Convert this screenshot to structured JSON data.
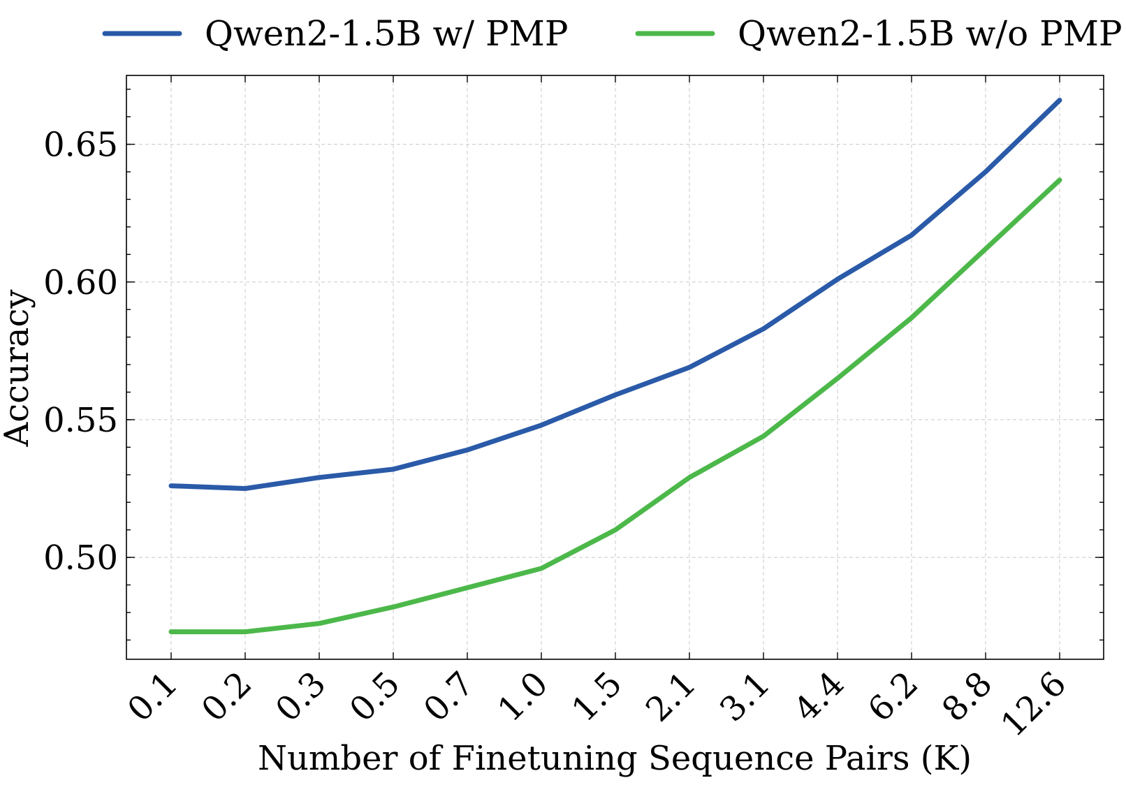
{
  "chart_data": {
    "type": "line",
    "xlabel": "Number of Finetuning Sequence Pairs (K)",
    "ylabel": "Accuracy",
    "categories": [
      "0.1",
      "0.2",
      "0.3",
      "0.5",
      "0.7",
      "1.0",
      "1.5",
      "2.1",
      "3.1",
      "4.4",
      "6.2",
      "8.8",
      "12.6"
    ],
    "ylim": [
      0.463,
      0.675
    ],
    "yticks": [
      0.5,
      0.55,
      0.6,
      0.65
    ],
    "ytick_labels": [
      "0.50",
      "0.55",
      "0.60",
      "0.65"
    ],
    "grid": true,
    "legend_position": "top, outside",
    "series": [
      {
        "name": "Qwen2-1.5B w/ PMP",
        "color": "#2a5aa8",
        "values": [
          0.526,
          0.525,
          0.529,
          0.532,
          0.539,
          0.548,
          0.559,
          0.569,
          0.583,
          0.601,
          0.617,
          0.64,
          0.666
        ]
      },
      {
        "name": "Qwen2-1.5B w/o PMP",
        "color": "#4cb84a",
        "values": [
          0.473,
          0.473,
          0.476,
          0.482,
          0.489,
          0.496,
          0.51,
          0.529,
          0.544,
          0.565,
          0.587,
          0.612,
          0.637
        ]
      }
    ]
  }
}
